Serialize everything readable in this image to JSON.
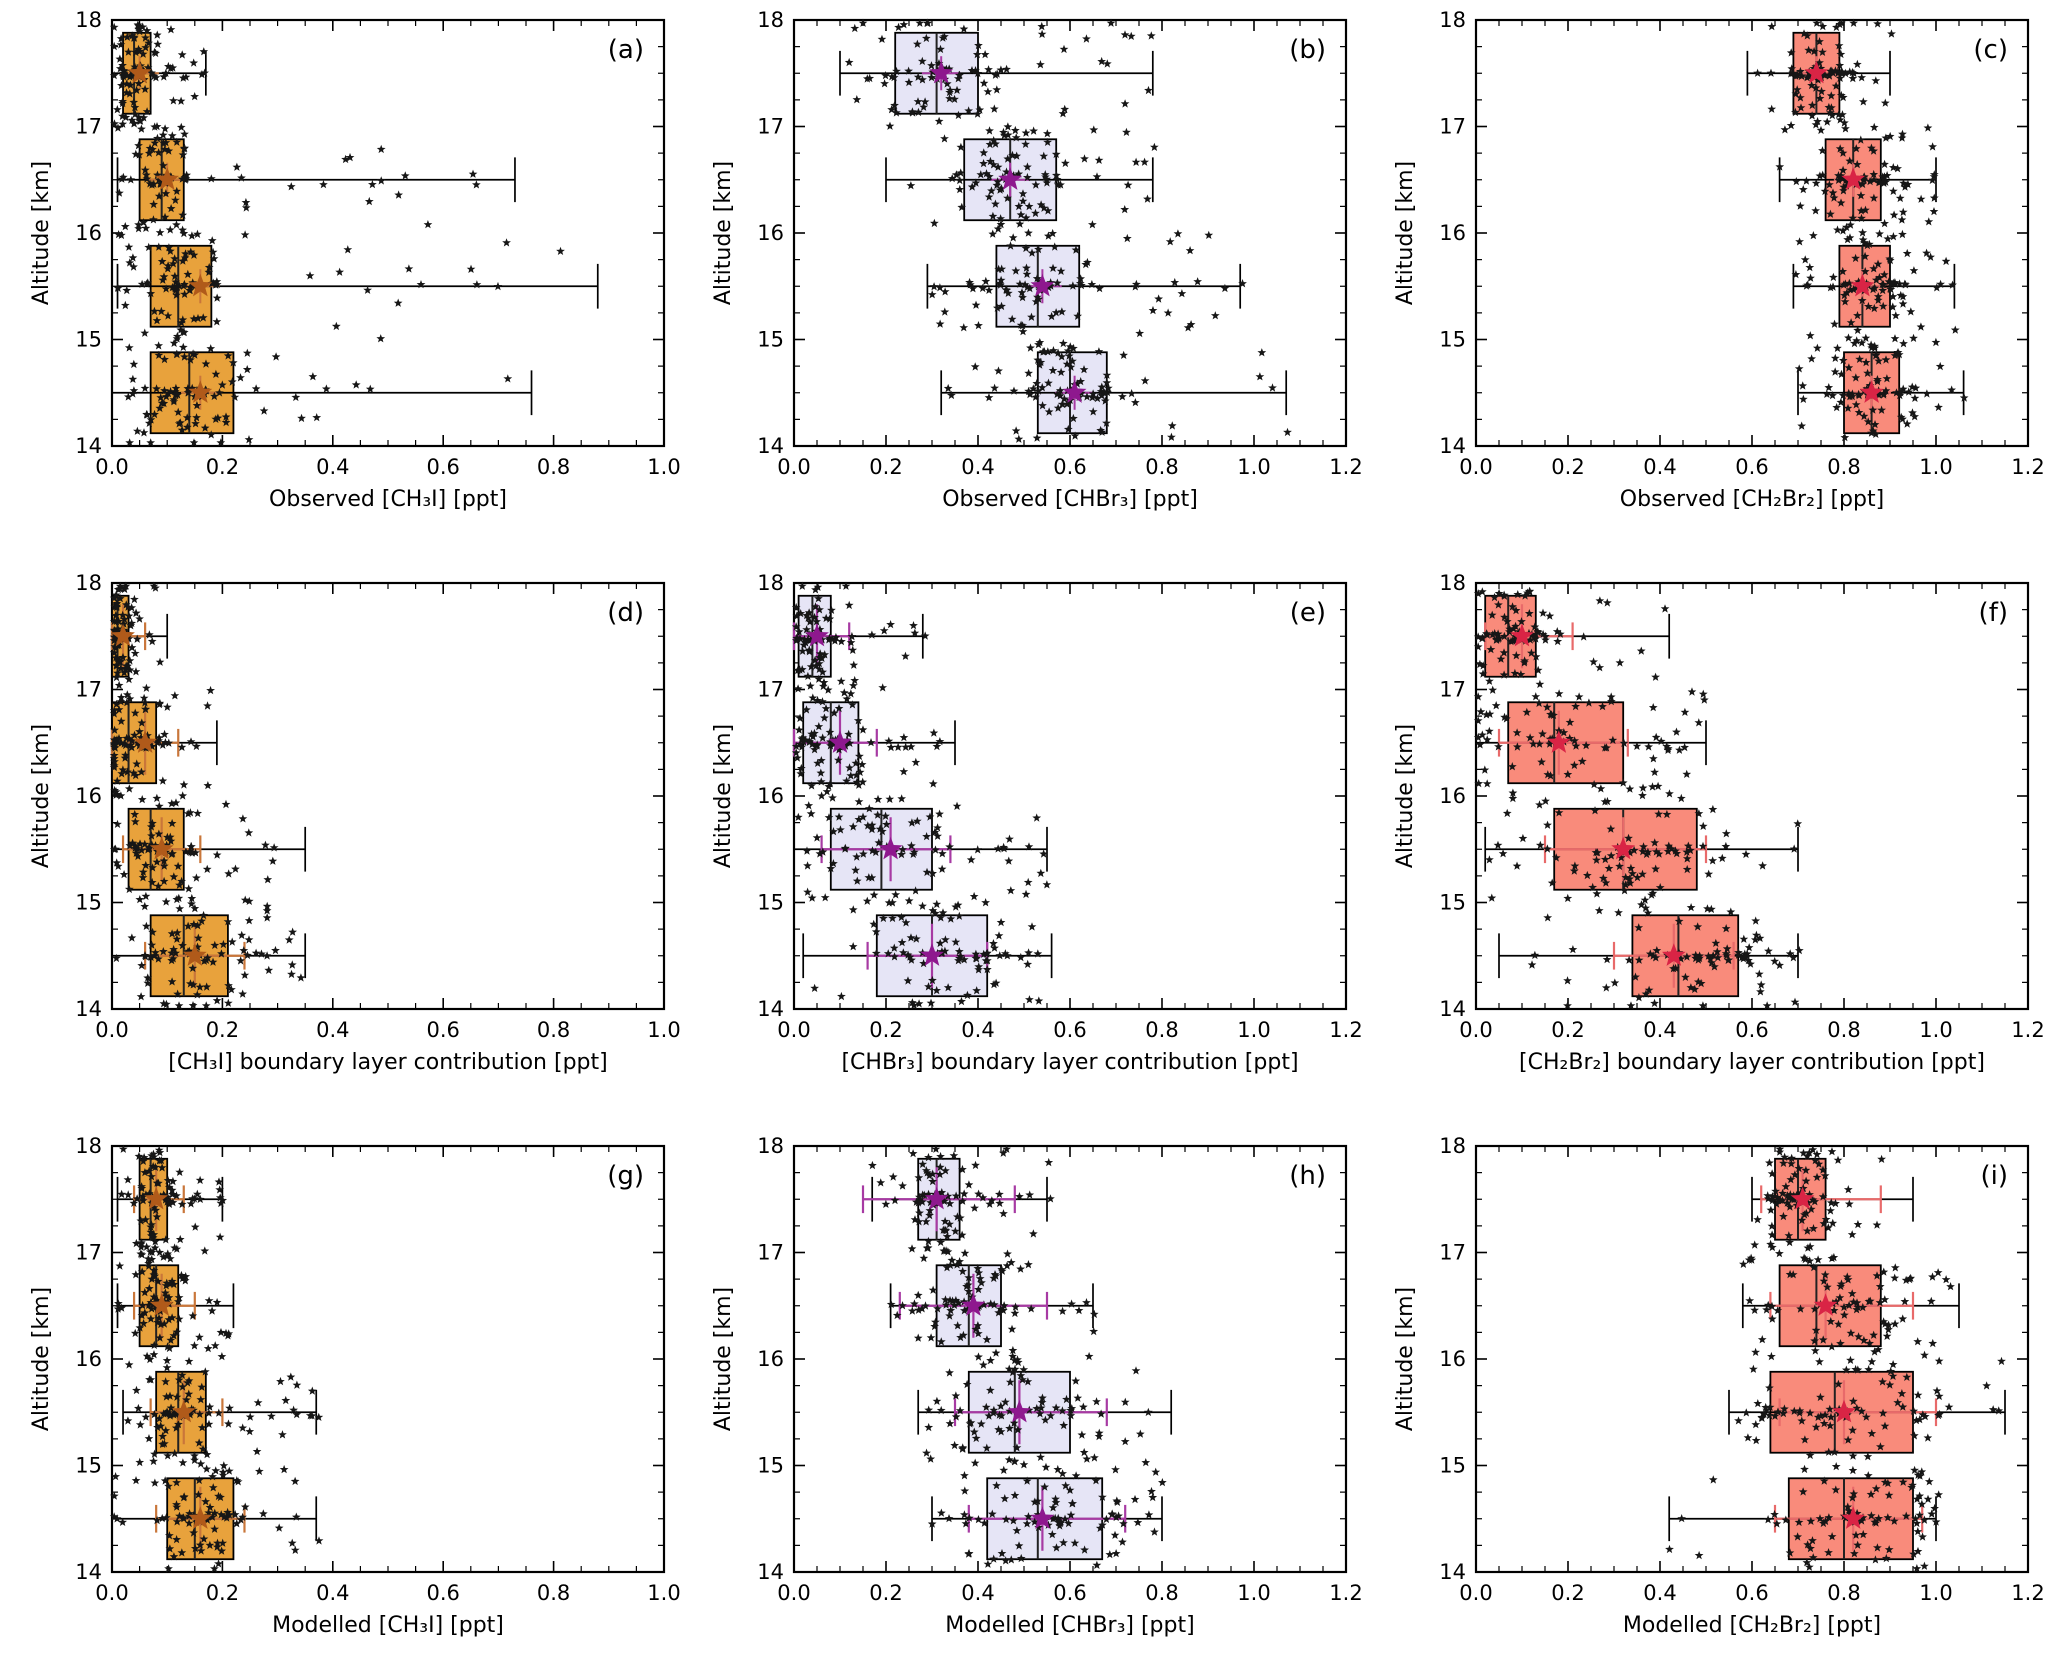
{
  "page": {
    "background": "#ffffff"
  },
  "shared": {
    "ylabel": "Altitude [km]",
    "ylim": [
      14,
      18
    ],
    "ytick_labels": [
      "14",
      "15",
      "16",
      "17",
      "18"
    ],
    "ytick_step": 1,
    "yminor_step": 0.25
  },
  "styles": {
    "ch3i": {
      "fill": "#E8A23C",
      "edge": "#000000",
      "median": "#222222",
      "mean": "#B05A1A",
      "err": "#C9763A"
    },
    "chbr3": {
      "fill": "#E6E5F6",
      "edge": "#000000",
      "median": "#222222",
      "mean": "#8E188E",
      "err": "#A73AA3"
    },
    "ch2br2": {
      "fill": "#F98B7B",
      "edge": "#000000",
      "median": "#222222",
      "mean": "#D92445",
      "err": "#E86A6A"
    }
  },
  "chart_data": [
    {
      "key": "a",
      "type": "boxplot-scatter",
      "label": "(a)",
      "style": "ch3i",
      "xlabel": "Observed [CH₃I]  [ppt]",
      "xlim": [
        0,
        1.0
      ],
      "xtick_step": 0.2,
      "xminor_step": 0.05,
      "xtick_labels": [
        "0.0",
        "0.2",
        "0.4",
        "0.6",
        "0.8",
        "1.0"
      ],
      "boxes": [
        {
          "alt": 17.5,
          "q1": 0.02,
          "med": 0.04,
          "q3": 0.07,
          "wlo": 0.0,
          "whi": 0.17,
          "mean": 0.05
        },
        {
          "alt": 16.5,
          "q1": 0.05,
          "med": 0.09,
          "q3": 0.13,
          "wlo": 0.01,
          "whi": 0.73,
          "mean": 0.1
        },
        {
          "alt": 15.5,
          "q1": 0.07,
          "med": 0.12,
          "q3": 0.18,
          "wlo": 0.01,
          "whi": 0.88,
          "mean": 0.16
        },
        {
          "alt": 14.5,
          "q1": 0.07,
          "med": 0.14,
          "q3": 0.22,
          "wlo": 0.0,
          "whi": 0.76,
          "mean": 0.16
        }
      ],
      "scatter": {
        "seed": 1,
        "per_band": 95
      }
    },
    {
      "key": "b",
      "type": "boxplot-scatter",
      "label": "(b)",
      "style": "chbr3",
      "xlabel": "Observed [CHBr₃]  [ppt]",
      "xlim": [
        0,
        1.2
      ],
      "xtick_step": 0.2,
      "xminor_step": 0.05,
      "xtick_labels": [
        "0.0",
        "0.2",
        "0.4",
        "0.6",
        "0.8",
        "1.0",
        "1.2"
      ],
      "boxes": [
        {
          "alt": 17.5,
          "q1": 0.22,
          "med": 0.31,
          "q3": 0.4,
          "wlo": 0.1,
          "whi": 0.78,
          "mean": 0.32
        },
        {
          "alt": 16.5,
          "q1": 0.37,
          "med": 0.47,
          "q3": 0.57,
          "wlo": 0.2,
          "whi": 0.78,
          "mean": 0.47
        },
        {
          "alt": 15.5,
          "q1": 0.44,
          "med": 0.53,
          "q3": 0.62,
          "wlo": 0.29,
          "whi": 0.97,
          "mean": 0.54
        },
        {
          "alt": 14.5,
          "q1": 0.53,
          "med": 0.6,
          "q3": 0.68,
          "wlo": 0.32,
          "whi": 1.07,
          "mean": 0.61
        }
      ],
      "scatter": {
        "seed": 2,
        "per_band": 95
      }
    },
    {
      "key": "c",
      "type": "boxplot-scatter",
      "label": "(c)",
      "style": "ch2br2",
      "xlabel": "Observed [CH₂Br₂]  [ppt]",
      "xlim": [
        0,
        1.2
      ],
      "xtick_step": 0.2,
      "xminor_step": 0.05,
      "xtick_labels": [
        "0.0",
        "0.2",
        "0.4",
        "0.6",
        "0.8",
        "1.0",
        "1.2"
      ],
      "boxes": [
        {
          "alt": 17.5,
          "q1": 0.69,
          "med": 0.74,
          "q3": 0.79,
          "wlo": 0.59,
          "whi": 0.9,
          "mean": 0.74
        },
        {
          "alt": 16.5,
          "q1": 0.76,
          "med": 0.82,
          "q3": 0.88,
          "wlo": 0.66,
          "whi": 1.0,
          "mean": 0.82
        },
        {
          "alt": 15.5,
          "q1": 0.79,
          "med": 0.84,
          "q3": 0.9,
          "wlo": 0.69,
          "whi": 1.04,
          "mean": 0.84
        },
        {
          "alt": 14.5,
          "q1": 0.8,
          "med": 0.86,
          "q3": 0.92,
          "wlo": 0.7,
          "whi": 1.06,
          "mean": 0.86
        }
      ],
      "scatter": {
        "seed": 3,
        "per_band": 95
      }
    },
    {
      "key": "d",
      "type": "boxplot-scatter",
      "label": "(d)",
      "style": "ch3i",
      "xlabel": "[CH₃I] boundary layer contribution  [ppt]",
      "xlim": [
        0,
        1.0
      ],
      "xtick_step": 0.2,
      "xminor_step": 0.05,
      "xtick_labels": [
        "0.0",
        "0.2",
        "0.4",
        "0.6",
        "0.8",
        "1.0"
      ],
      "boxes": [
        {
          "alt": 17.5,
          "q1": 0.0,
          "med": 0.01,
          "q3": 0.03,
          "wlo": 0.0,
          "whi": 0.1,
          "mean": 0.02,
          "merr": [
            0.0,
            0.06
          ]
        },
        {
          "alt": 16.5,
          "q1": 0.0,
          "med": 0.03,
          "q3": 0.08,
          "wlo": 0.0,
          "whi": 0.19,
          "mean": 0.06,
          "merr": [
            0.0,
            0.12
          ]
        },
        {
          "alt": 15.5,
          "q1": 0.03,
          "med": 0.07,
          "q3": 0.13,
          "wlo": 0.0,
          "whi": 0.35,
          "mean": 0.09,
          "merr": [
            0.02,
            0.16
          ]
        },
        {
          "alt": 14.5,
          "q1": 0.07,
          "med": 0.13,
          "q3": 0.21,
          "wlo": 0.0,
          "whi": 0.35,
          "mean": 0.15,
          "merr": [
            0.06,
            0.24
          ]
        }
      ],
      "scatter": {
        "seed": 4,
        "per_band": 90
      }
    },
    {
      "key": "e",
      "type": "boxplot-scatter",
      "label": "(e)",
      "style": "chbr3",
      "xlabel": "[CHBr₃] boundary layer contribution  [ppt]",
      "xlim": [
        0,
        1.2
      ],
      "xtick_step": 0.2,
      "xminor_step": 0.05,
      "xtick_labels": [
        "0.0",
        "0.2",
        "0.4",
        "0.6",
        "0.8",
        "1.0",
        "1.2"
      ],
      "boxes": [
        {
          "alt": 17.5,
          "q1": 0.01,
          "med": 0.04,
          "q3": 0.08,
          "wlo": 0.0,
          "whi": 0.28,
          "mean": 0.05,
          "merr": [
            0.0,
            0.12
          ]
        },
        {
          "alt": 16.5,
          "q1": 0.02,
          "med": 0.08,
          "q3": 0.14,
          "wlo": 0.0,
          "whi": 0.35,
          "mean": 0.1,
          "merr": [
            0.0,
            0.18
          ]
        },
        {
          "alt": 15.5,
          "q1": 0.08,
          "med": 0.19,
          "q3": 0.3,
          "wlo": 0.0,
          "whi": 0.55,
          "mean": 0.21,
          "merr": [
            0.06,
            0.34
          ]
        },
        {
          "alt": 14.5,
          "q1": 0.18,
          "med": 0.3,
          "q3": 0.42,
          "wlo": 0.02,
          "whi": 0.56,
          "mean": 0.3,
          "merr": [
            0.16,
            0.42
          ]
        }
      ],
      "scatter": {
        "seed": 5,
        "per_band": 90
      }
    },
    {
      "key": "f",
      "type": "boxplot-scatter",
      "label": "(f)",
      "style": "ch2br2",
      "xlabel": "[CH₂Br₂] boundary layer contribution  [ppt]",
      "xlim": [
        0,
        1.2
      ],
      "xtick_step": 0.2,
      "xminor_step": 0.05,
      "xtick_labels": [
        "0.0",
        "0.2",
        "0.4",
        "0.6",
        "0.8",
        "1.0",
        "1.2"
      ],
      "boxes": [
        {
          "alt": 17.5,
          "q1": 0.02,
          "med": 0.07,
          "q3": 0.13,
          "wlo": 0.0,
          "whi": 0.42,
          "mean": 0.1,
          "merr": [
            0.02,
            0.21
          ]
        },
        {
          "alt": 16.5,
          "q1": 0.07,
          "med": 0.17,
          "q3": 0.32,
          "wlo": 0.0,
          "whi": 0.5,
          "mean": 0.18,
          "merr": [
            0.05,
            0.33
          ]
        },
        {
          "alt": 15.5,
          "q1": 0.17,
          "med": 0.32,
          "q3": 0.48,
          "wlo": 0.02,
          "whi": 0.7,
          "mean": 0.32,
          "merr": [
            0.15,
            0.5
          ]
        },
        {
          "alt": 14.5,
          "q1": 0.34,
          "med": 0.44,
          "q3": 0.57,
          "wlo": 0.05,
          "whi": 0.7,
          "mean": 0.43,
          "merr": [
            0.3,
            0.56
          ]
        }
      ],
      "scatter": {
        "seed": 6,
        "per_band": 90
      }
    },
    {
      "key": "g",
      "type": "boxplot-scatter",
      "label": "(g)",
      "style": "ch3i",
      "xlabel": "Modelled [CH₃I]  [ppt]",
      "xlim": [
        0,
        1.0
      ],
      "xtick_step": 0.2,
      "xminor_step": 0.05,
      "xtick_labels": [
        "0.0",
        "0.2",
        "0.4",
        "0.6",
        "0.8",
        "1.0"
      ],
      "boxes": [
        {
          "alt": 17.5,
          "q1": 0.05,
          "med": 0.07,
          "q3": 0.1,
          "wlo": 0.01,
          "whi": 0.2,
          "mean": 0.08,
          "merr": [
            0.04,
            0.13
          ]
        },
        {
          "alt": 16.5,
          "q1": 0.05,
          "med": 0.08,
          "q3": 0.12,
          "wlo": 0.01,
          "whi": 0.22,
          "mean": 0.09,
          "merr": [
            0.04,
            0.15
          ]
        },
        {
          "alt": 15.5,
          "q1": 0.08,
          "med": 0.12,
          "q3": 0.17,
          "wlo": 0.02,
          "whi": 0.37,
          "mean": 0.13,
          "merr": [
            0.07,
            0.2
          ]
        },
        {
          "alt": 14.5,
          "q1": 0.1,
          "med": 0.15,
          "q3": 0.22,
          "wlo": 0.0,
          "whi": 0.37,
          "mean": 0.16,
          "merr": [
            0.08,
            0.24
          ]
        }
      ],
      "scatter": {
        "seed": 7,
        "per_band": 90
      }
    },
    {
      "key": "h",
      "type": "boxplot-scatter",
      "label": "(h)",
      "style": "chbr3",
      "xlabel": "Modelled [CHBr₃]  [ppt]",
      "xlim": [
        0,
        1.2
      ],
      "xtick_step": 0.2,
      "xminor_step": 0.05,
      "xtick_labels": [
        "0.0",
        "0.2",
        "0.4",
        "0.6",
        "0.8",
        "1.0",
        "1.2"
      ],
      "boxes": [
        {
          "alt": 17.5,
          "q1": 0.27,
          "med": 0.31,
          "q3": 0.36,
          "wlo": 0.17,
          "whi": 0.55,
          "mean": 0.31,
          "merr": [
            0.15,
            0.48
          ]
        },
        {
          "alt": 16.5,
          "q1": 0.31,
          "med": 0.38,
          "q3": 0.45,
          "wlo": 0.21,
          "whi": 0.65,
          "mean": 0.39,
          "merr": [
            0.23,
            0.55
          ]
        },
        {
          "alt": 15.5,
          "q1": 0.38,
          "med": 0.48,
          "q3": 0.6,
          "wlo": 0.27,
          "whi": 0.82,
          "mean": 0.49,
          "merr": [
            0.35,
            0.68
          ]
        },
        {
          "alt": 14.5,
          "q1": 0.42,
          "med": 0.53,
          "q3": 0.67,
          "wlo": 0.3,
          "whi": 0.8,
          "mean": 0.54,
          "merr": [
            0.38,
            0.72
          ]
        }
      ],
      "scatter": {
        "seed": 8,
        "per_band": 90
      }
    },
    {
      "key": "i",
      "type": "boxplot-scatter",
      "label": "(i)",
      "style": "ch2br2",
      "xlabel": "Modelled [CH₂Br₂]  [ppt]",
      "xlim": [
        0,
        1.2
      ],
      "xtick_step": 0.2,
      "xminor_step": 0.05,
      "xtick_labels": [
        "0.0",
        "0.2",
        "0.4",
        "0.6",
        "0.8",
        "1.0",
        "1.2"
      ],
      "boxes": [
        {
          "alt": 17.5,
          "q1": 0.65,
          "med": 0.7,
          "q3": 0.76,
          "wlo": 0.6,
          "whi": 0.95,
          "mean": 0.71,
          "merr": [
            0.62,
            0.88
          ]
        },
        {
          "alt": 16.5,
          "q1": 0.66,
          "med": 0.74,
          "q3": 0.88,
          "wlo": 0.58,
          "whi": 1.05,
          "mean": 0.76,
          "merr": [
            0.64,
            0.95
          ]
        },
        {
          "alt": 15.5,
          "q1": 0.64,
          "med": 0.78,
          "q3": 0.95,
          "wlo": 0.55,
          "whi": 1.15,
          "mean": 0.8,
          "merr": [
            0.66,
            1.0
          ]
        },
        {
          "alt": 14.5,
          "q1": 0.68,
          "med": 0.8,
          "q3": 0.95,
          "wlo": 0.42,
          "whi": 1.0,
          "mean": 0.82,
          "merr": [
            0.65,
            0.97
          ]
        }
      ],
      "scatter": {
        "seed": 9,
        "per_band": 90
      }
    }
  ]
}
